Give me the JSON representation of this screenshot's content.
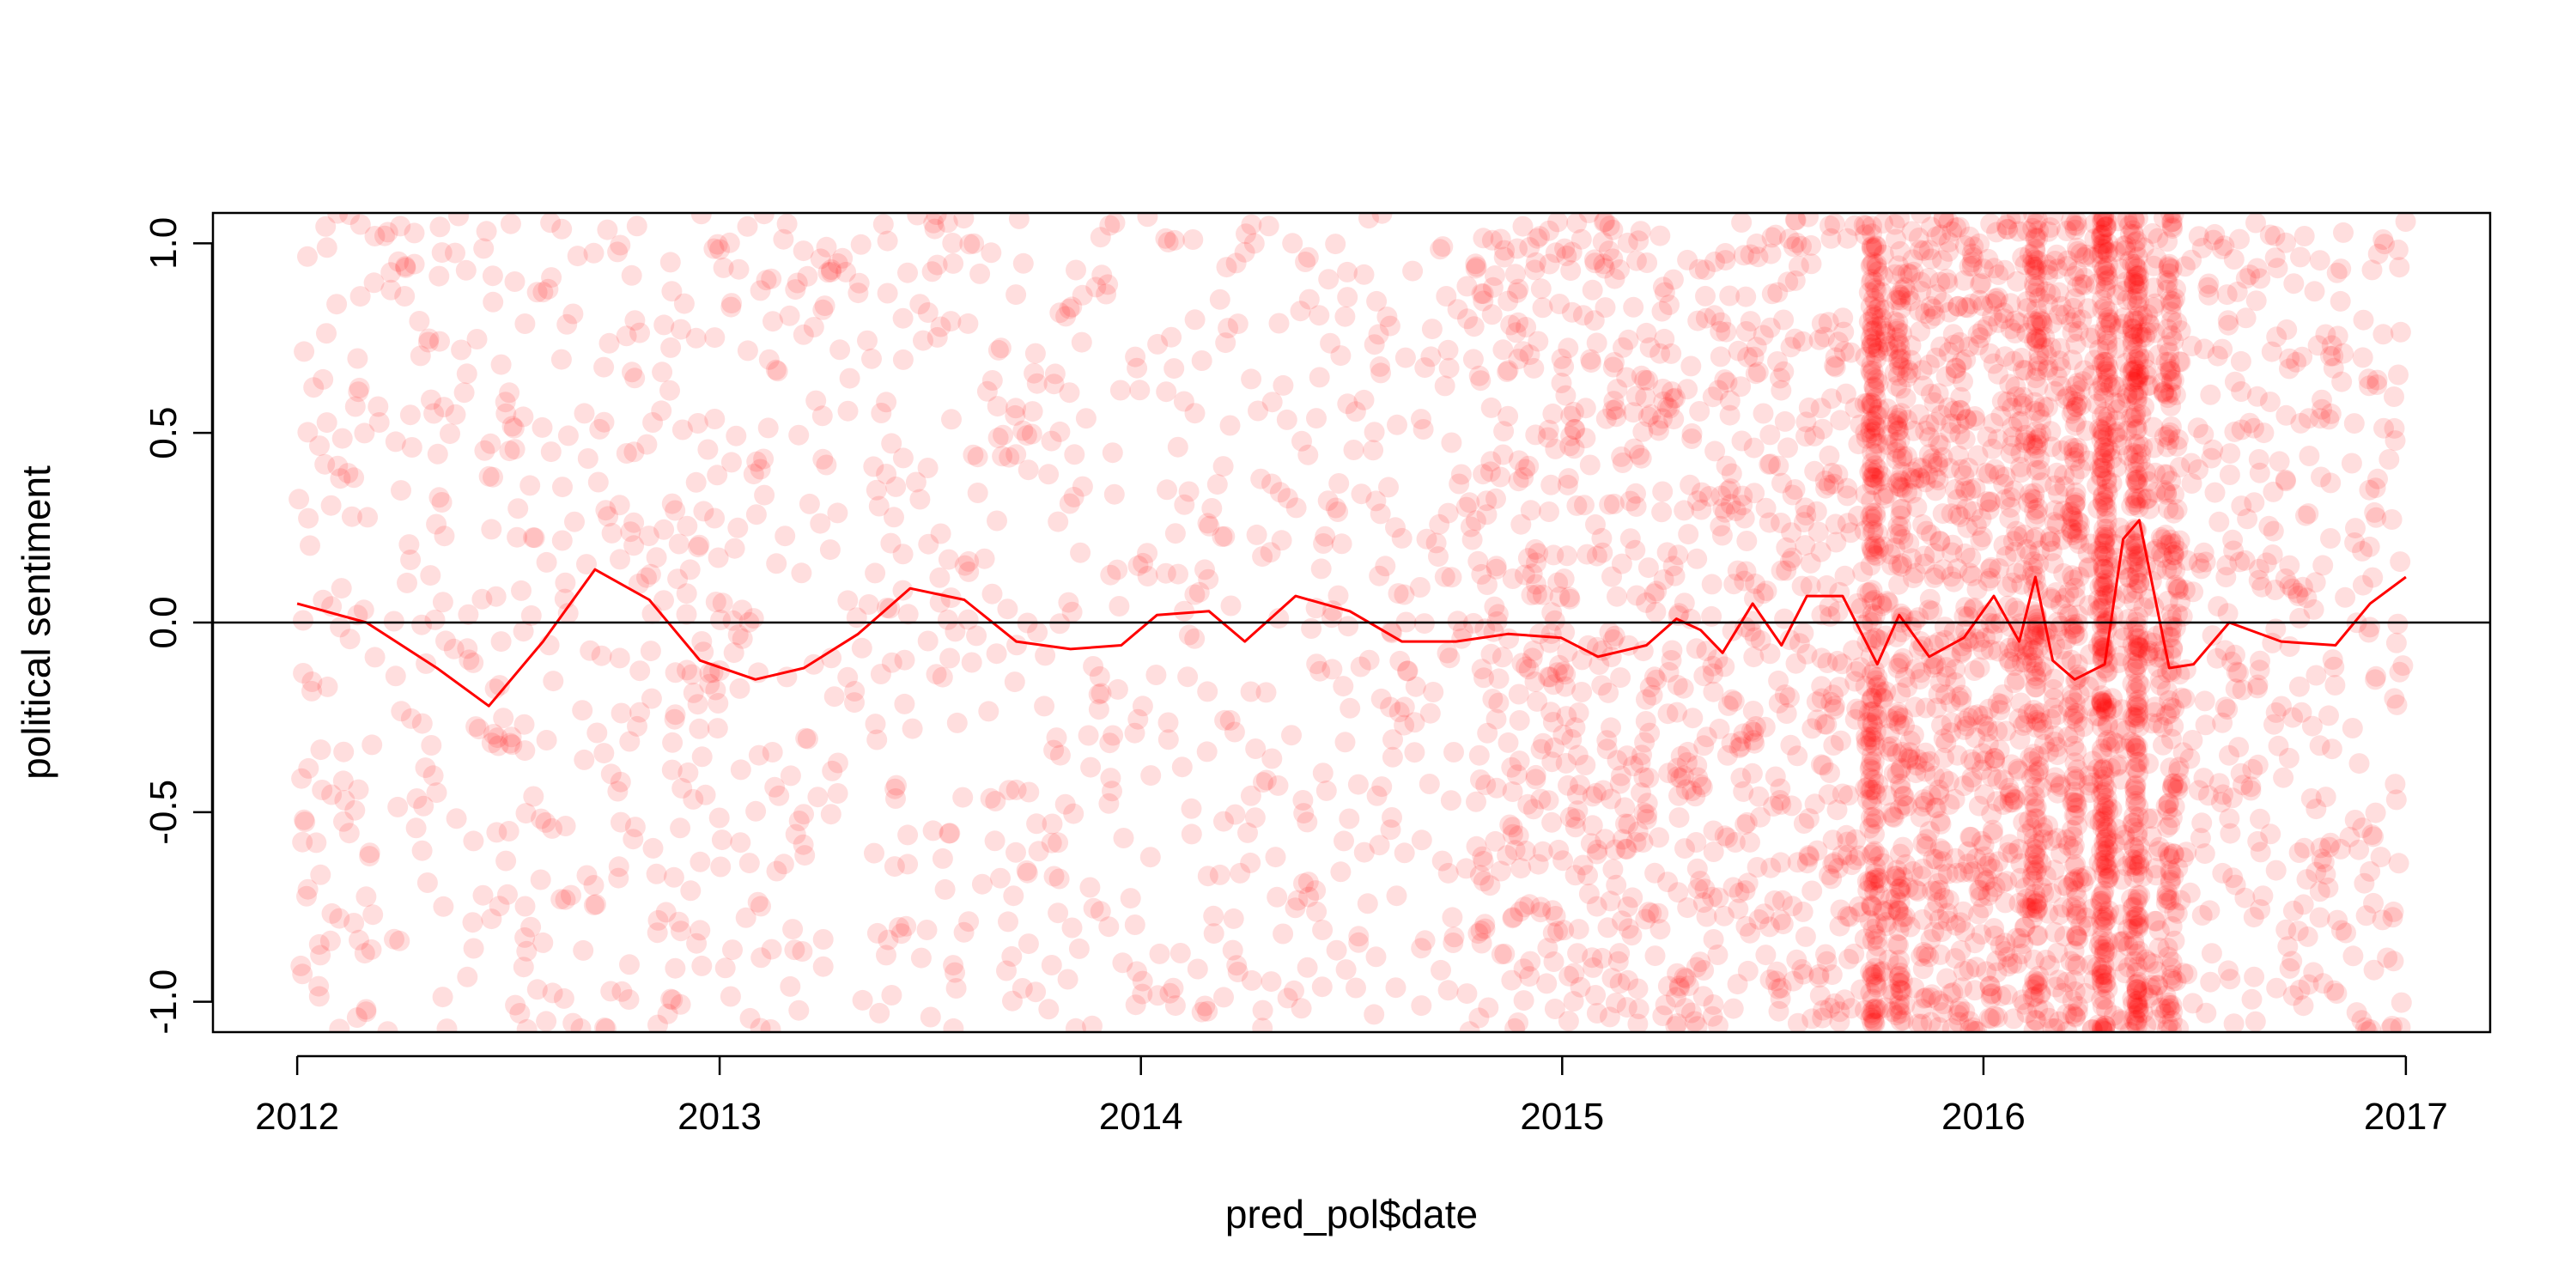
{
  "chart_data": {
    "type": "scatter",
    "title": "",
    "xlabel": "pred_pol$date",
    "ylabel": "political sentiment",
    "xlim": [
      "2011-10-20",
      "2017-03-15"
    ],
    "ylim": [
      -1.08,
      1.08
    ],
    "x_ticks": [
      "2012",
      "2013",
      "2014",
      "2015",
      "2016",
      "2017"
    ],
    "x_tick_dates": [
      "2012-01-01",
      "2013-01-01",
      "2014-01-01",
      "2015-01-01",
      "2016-01-01",
      "2017-01-01"
    ],
    "y_ticks": [
      -1.0,
      -0.5,
      0.0,
      0.5,
      1.0
    ],
    "y_tick_labels": [
      "-1.0",
      "-0.5",
      "0.0",
      "0.5",
      "1.0"
    ],
    "reference_line_y": 0,
    "grid": false,
    "legend": "none",
    "point_color": "#ff0000",
    "point_opacity": 0.13,
    "line_color": "#ff0000",
    "reference_line_color": "#000000",
    "trend_line": {
      "x": [
        "2012-01-01",
        "2012-03-01",
        "2012-05-01",
        "2012-06-15",
        "2012-08-01",
        "2012-09-15",
        "2012-11-01",
        "2012-12-15",
        "2013-02-01",
        "2013-03-15",
        "2013-05-01",
        "2013-06-15",
        "2013-08-01",
        "2013-09-15",
        "2013-11-01",
        "2013-12-15",
        "2014-01-15",
        "2014-03-01",
        "2014-04-01",
        "2014-05-15",
        "2014-07-01",
        "2014-08-15",
        "2014-10-01",
        "2014-11-15",
        "2014-12-31",
        "2015-02-01",
        "2015-03-15",
        "2015-04-10",
        "2015-05-01",
        "2015-05-20",
        "2015-06-15",
        "2015-07-10",
        "2015-08-01",
        "2015-09-01",
        "2015-10-01",
        "2015-10-20",
        "2015-11-15",
        "2015-12-15",
        "2016-01-10",
        "2016-02-01",
        "2016-02-15",
        "2016-03-01",
        "2016-03-20",
        "2016-04-15",
        "2016-05-01",
        "2016-05-15",
        "2016-06-10",
        "2016-07-01",
        "2016-08-01",
        "2016-09-15",
        "2016-11-01",
        "2016-12-01",
        "2017-01-01"
      ],
      "y": [
        0.05,
        0.0,
        -0.12,
        -0.22,
        -0.05,
        0.14,
        0.06,
        -0.1,
        -0.15,
        -0.12,
        -0.03,
        0.09,
        0.06,
        -0.05,
        -0.07,
        -0.06,
        0.02,
        0.03,
        -0.05,
        0.07,
        0.03,
        -0.05,
        -0.05,
        -0.03,
        -0.04,
        -0.09,
        -0.06,
        0.01,
        -0.02,
        -0.08,
        0.05,
        -0.06,
        0.07,
        0.07,
        -0.11,
        0.02,
        -0.09,
        -0.04,
        0.07,
        -0.05,
        0.12,
        -0.1,
        -0.15,
        -0.11,
        0.22,
        0.27,
        -0.12,
        -0.11,
        0.0,
        -0.05,
        -0.06,
        0.05,
        0.12
      ]
    }
  }
}
